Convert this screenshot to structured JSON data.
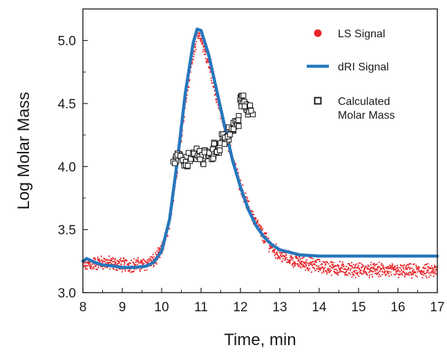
{
  "chart_data": {
    "type": "scatter",
    "title": "",
    "xlabel": "Time, min",
    "ylabel": "Log Molar Mass",
    "xlim": [
      8,
      17
    ],
    "ylim": [
      3.0,
      5.25
    ],
    "x_ticks": [
      8,
      9,
      10,
      11,
      12,
      13,
      14,
      15,
      16,
      17
    ],
    "y_ticks": [
      3.0,
      3.5,
      4.0,
      4.5,
      5.0
    ],
    "y_tick_labels": [
      "3.0",
      "3.5",
      "4.0",
      "4.5",
      "5.0"
    ],
    "x_tick_labels": [
      "8",
      "9",
      "10",
      "11",
      "12",
      "13",
      "14",
      "15",
      "16",
      "17"
    ],
    "grid": false,
    "legend_position": "top-right",
    "series": [
      {
        "name": "LS Signal",
        "mark": "dots",
        "color": "#e8262a",
        "x": [
          8.0,
          8.5,
          9.0,
          9.5,
          9.8,
          10.0,
          10.2,
          10.4,
          10.6,
          10.8,
          10.9,
          11.0,
          11.2,
          11.4,
          11.6,
          11.8,
          12.0,
          12.2,
          12.4,
          12.6,
          12.8,
          13.0,
          13.5,
          14.0,
          14.5,
          15.0,
          15.5,
          16.0,
          16.5,
          17.0
        ],
        "y": [
          3.22,
          3.24,
          3.22,
          3.22,
          3.25,
          3.33,
          3.55,
          4.0,
          4.5,
          4.9,
          5.03,
          5.02,
          4.8,
          4.55,
          4.3,
          4.06,
          3.85,
          3.68,
          3.55,
          3.44,
          3.36,
          3.3,
          3.24,
          3.21,
          3.19,
          3.18,
          3.18,
          3.17,
          3.17,
          3.17
        ]
      },
      {
        "name": "dRI Signal",
        "mark": "line",
        "color": "#2677bd",
        "x": [
          8.0,
          8.1,
          8.3,
          8.5,
          8.8,
          9.0,
          9.3,
          9.6,
          9.8,
          10.0,
          10.2,
          10.4,
          10.6,
          10.8,
          10.9,
          11.0,
          11.2,
          11.4,
          11.6,
          11.8,
          12.0,
          12.2,
          12.4,
          12.6,
          12.8,
          13.0,
          13.5,
          14.0,
          14.5,
          15.0,
          15.5,
          16.0,
          16.5,
          17.0
        ],
        "y": [
          3.25,
          3.27,
          3.24,
          3.22,
          3.21,
          3.2,
          3.2,
          3.21,
          3.24,
          3.33,
          3.58,
          4.05,
          4.58,
          4.98,
          5.09,
          5.08,
          4.88,
          4.6,
          4.32,
          4.05,
          3.84,
          3.66,
          3.53,
          3.44,
          3.38,
          3.34,
          3.3,
          3.29,
          3.29,
          3.29,
          3.29,
          3.29,
          3.29,
          3.29
        ]
      },
      {
        "name": "Calculated Molar Mass",
        "mark": "open-squares",
        "color": "#1a1a1a",
        "x": [
          10.35,
          10.45,
          10.55,
          10.65,
          10.75,
          10.85,
          10.95,
          11.05,
          11.15,
          11.25,
          11.35,
          11.45,
          11.55,
          11.65,
          11.75,
          11.85,
          11.95,
          12.0,
          12.05,
          12.15,
          12.25
        ],
        "y": [
          4.06,
          4.1,
          4.05,
          4.0,
          4.07,
          4.1,
          4.08,
          4.06,
          4.12,
          4.1,
          4.18,
          4.13,
          4.22,
          4.2,
          4.28,
          4.32,
          4.36,
          4.55,
          4.5,
          4.45,
          4.45
        ]
      }
    ]
  }
}
